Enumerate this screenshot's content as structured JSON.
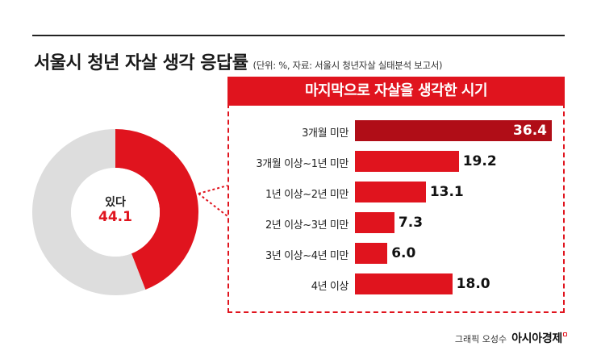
{
  "header": {
    "title": "서울시 청년 자살 생각 응답률",
    "subtitle": "(단위: %, 자료: 서울시 청년자살 실태분석 보고서)"
  },
  "donut": {
    "label": "있다",
    "value_text": "44.1",
    "value": 44.1,
    "colors": {
      "filled": "#e0141e",
      "rest": "#dddddd"
    }
  },
  "panel": {
    "title": "마지막으로 자살을 생각한 시기"
  },
  "chart_data": [
    {
      "type": "pie",
      "categories": [
        "있다"
      ],
      "values": [
        44.1
      ],
      "unit": "%"
    },
    {
      "type": "bar",
      "orientation": "horizontal",
      "title": "마지막으로 자살을 생각한 시기",
      "categories": [
        "3개월 미만",
        "3개월 이상~1년 미만",
        "1년 이상~2년 미만",
        "2년 이상~3년 미만",
        "3년 이상~4년 미만",
        "4년 이상"
      ],
      "values": [
        36.4,
        19.2,
        13.1,
        7.3,
        6.0,
        18.0
      ],
      "value_labels": [
        "36.4",
        "19.2",
        "13.1",
        "7.3",
        "6.0",
        "18.0"
      ],
      "unit": "%",
      "highlight_index": 0,
      "colors": {
        "bar": "#e0141e",
        "highlight": "#b00d17"
      }
    }
  ],
  "footer": {
    "credit": "그래픽 오성수",
    "brand": "아시아경제"
  }
}
